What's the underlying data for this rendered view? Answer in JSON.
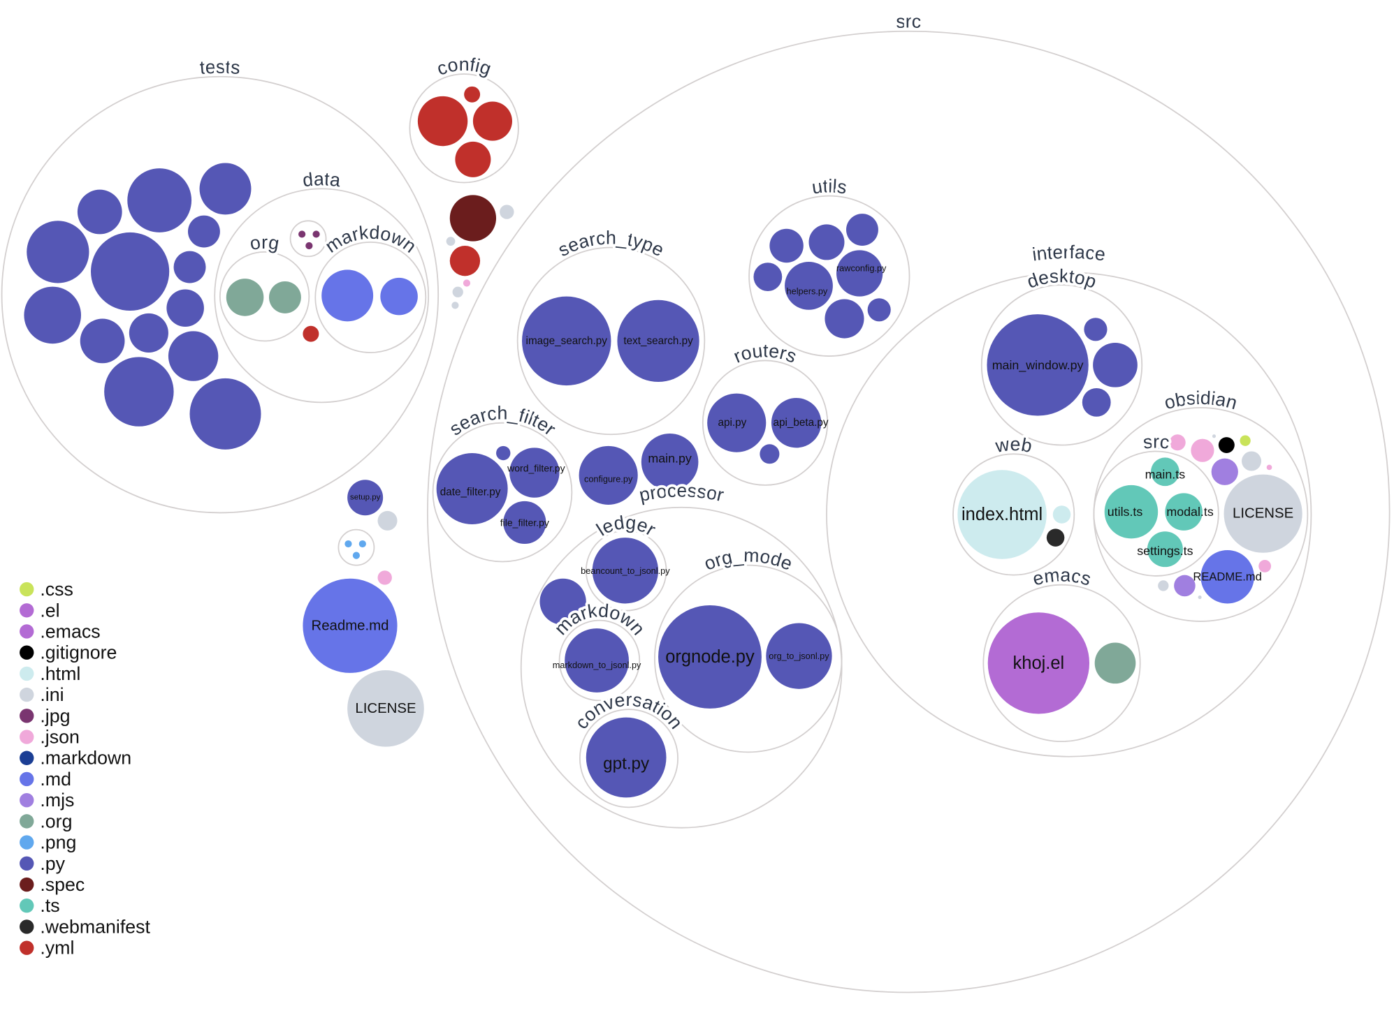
{
  "legend": [
    {
      "ext": ".css",
      "color": "#c9e35a"
    },
    {
      "ext": ".el",
      "color": "#b36bd4"
    },
    {
      "ext": ".emacs",
      "color": "#b36bd4"
    },
    {
      "ext": ".gitignore",
      "color": "#000000"
    },
    {
      "ext": ".html",
      "color": "#cdebee"
    },
    {
      "ext": ".ini",
      "color": "#cfd5de"
    },
    {
      "ext": ".jpg",
      "color": "#7a3570"
    },
    {
      "ext": ".json",
      "color": "#f0a9da"
    },
    {
      "ext": ".markdown",
      "color": "#1b3e94"
    },
    {
      "ext": ".md",
      "color": "#6674e8"
    },
    {
      "ext": ".mjs",
      "color": "#a07fe0"
    },
    {
      "ext": ".org",
      "color": "#80a898"
    },
    {
      "ext": ".png",
      "color": "#60a8ee"
    },
    {
      "ext": ".py",
      "color": "#5557b5"
    },
    {
      "ext": ".spec",
      "color": "#6b1d1d"
    },
    {
      "ext": ".ts",
      "color": "#62c8b8"
    },
    {
      "ext": ".webmanifest",
      "color": "#2a2a2a"
    },
    {
      "ext": ".yml",
      "color": "#c0302b"
    }
  ],
  "folders": [
    {
      "label": "src"
    },
    {
      "label": "tests"
    },
    {
      "label": "config"
    },
    {
      "label": "data"
    },
    {
      "label": "org"
    },
    {
      "label": "markdown"
    },
    {
      "label": ""
    },
    {
      "label": ""
    },
    {
      "label": "search_type"
    },
    {
      "label": "utils"
    },
    {
      "label": "routers"
    },
    {
      "label": "search_filter"
    },
    {
      "label": "processor"
    },
    {
      "label": "ledger"
    },
    {
      "label": "org_mode"
    },
    {
      "label": "markdown"
    },
    {
      "label": "conversation"
    },
    {
      "label": "interface"
    },
    {
      "label": "desktop"
    },
    {
      "label": "web"
    },
    {
      "label": "obsidian"
    },
    {
      "label": "src"
    },
    {
      "label": "emacs"
    }
  ],
  "files": [
    {
      "label": "",
      "ext": ".py"
    },
    {
      "label": "",
      "ext": ".py"
    },
    {
      "label": "",
      "ext": ".py"
    },
    {
      "label": "",
      "ext": ".py"
    },
    {
      "label": "",
      "ext": ".py"
    },
    {
      "label": "",
      "ext": ".py"
    },
    {
      "label": "",
      "ext": ".py"
    },
    {
      "label": "",
      "ext": ".py"
    },
    {
      "label": "",
      "ext": ".py"
    },
    {
      "label": "",
      "ext": ".py"
    },
    {
      "label": "",
      "ext": ".py"
    },
    {
      "label": "",
      "ext": ".py"
    },
    {
      "label": "",
      "ext": ".py"
    },
    {
      "label": "",
      "ext": ".py"
    },
    {
      "label": "",
      "ext": ".org"
    },
    {
      "label": "",
      "ext": ".org"
    },
    {
      "label": "",
      "ext": ".md"
    },
    {
      "label": "",
      "ext": ".md"
    },
    {
      "label": "",
      "ext": ".yml"
    },
    {
      "label": "",
      "ext": ".jpg"
    },
    {
      "label": "",
      "ext": ".jpg"
    },
    {
      "label": "",
      "ext": ".jpg"
    },
    {
      "label": "",
      "ext": ".yml"
    },
    {
      "label": "",
      "ext": ".yml"
    },
    {
      "label": "",
      "ext": ".yml"
    },
    {
      "label": "",
      "ext": ".yml"
    },
    {
      "label": "",
      "ext": ".spec"
    },
    {
      "label": "",
      "ext": ".ini"
    },
    {
      "label": "",
      "ext": ".ini"
    },
    {
      "label": "",
      "ext": ".yml"
    },
    {
      "label": "",
      "ext": ".json"
    },
    {
      "label": "",
      "ext": ".ini"
    },
    {
      "label": "",
      "ext": ".ini"
    },
    {
      "label": "setup.py",
      "ext": ".py"
    },
    {
      "label": "",
      "ext": ".ini"
    },
    {
      "label": "",
      "ext": ".png"
    },
    {
      "label": "",
      "ext": ".png"
    },
    {
      "label": "",
      "ext": ".png"
    },
    {
      "label": "",
      "ext": ".json"
    },
    {
      "label": "Readme.md",
      "ext": ".md"
    },
    {
      "label": "LICENSE",
      "ext": ".ini"
    },
    {
      "label": "image_search.py",
      "ext": ".py"
    },
    {
      "label": "text_search.py",
      "ext": ".py"
    },
    {
      "label": "",
      "ext": ".py"
    },
    {
      "label": "",
      "ext": ".py"
    },
    {
      "label": "",
      "ext": ".py"
    },
    {
      "label": "",
      "ext": ".py"
    },
    {
      "label": "helpers.py",
      "ext": ".py"
    },
    {
      "label": "rawconfig.py",
      "ext": ".py"
    },
    {
      "label": "",
      "ext": ".py"
    },
    {
      "label": "",
      "ext": ".py"
    },
    {
      "label": "api.py",
      "ext": ".py"
    },
    {
      "label": "api_beta.py",
      "ext": ".py"
    },
    {
      "label": "",
      "ext": ".py"
    },
    {
      "label": "date_filter.py",
      "ext": ".py"
    },
    {
      "label": "word_filter.py",
      "ext": ".py"
    },
    {
      "label": "file_filter.py",
      "ext": ".py"
    },
    {
      "label": "",
      "ext": ".py"
    },
    {
      "label": "configure.py",
      "ext": ".py"
    },
    {
      "label": "main.py",
      "ext": ".py"
    },
    {
      "label": "beancount_to_jsonl.py",
      "ext": ".py"
    },
    {
      "label": "",
      "ext": ".py"
    },
    {
      "label": "markdown_to_jsonl.py",
      "ext": ".py"
    },
    {
      "label": "orgnode.py",
      "ext": ".py"
    },
    {
      "label": "org_to_jsonl.py",
      "ext": ".py"
    },
    {
      "label": "gpt.py",
      "ext": ".py"
    },
    {
      "label": "main_window.py",
      "ext": ".py"
    },
    {
      "label": "",
      "ext": ".py"
    },
    {
      "label": "",
      "ext": ".py"
    },
    {
      "label": "",
      "ext": ".py"
    },
    {
      "label": "index.html",
      "ext": ".html"
    },
    {
      "label": "",
      "ext": ".webmanifest"
    },
    {
      "label": "",
      "ext": ".html"
    },
    {
      "label": "main.ts",
      "ext": ".ts"
    },
    {
      "label": "utils.ts",
      "ext": ".ts"
    },
    {
      "label": "modal.ts",
      "ext": ".ts"
    },
    {
      "label": "settings.ts",
      "ext": ".ts"
    },
    {
      "label": "",
      "ext": ".png"
    },
    {
      "label": "",
      "ext": ".json"
    },
    {
      "label": "",
      "ext": ".json"
    },
    {
      "label": "",
      "ext": ".ini"
    },
    {
      "label": "",
      "ext": ".gitignore"
    },
    {
      "label": "",
      "ext": ".css"
    },
    {
      "label": "",
      "ext": ".ini"
    },
    {
      "label": "",
      "ext": ".mjs"
    },
    {
      "label": "",
      "ext": ".json"
    },
    {
      "label": "LICENSE",
      "ext": ".ini"
    },
    {
      "label": "README.md",
      "ext": ".md"
    },
    {
      "label": "",
      "ext": ".json"
    },
    {
      "label": "",
      "ext": ".mjs"
    },
    {
      "label": "",
      "ext": ".ini"
    },
    {
      "label": "",
      "ext": ".ini"
    },
    {
      "label": "khoj.el",
      "ext": ".el"
    },
    {
      "label": "",
      "ext": ".org"
    }
  ]
}
